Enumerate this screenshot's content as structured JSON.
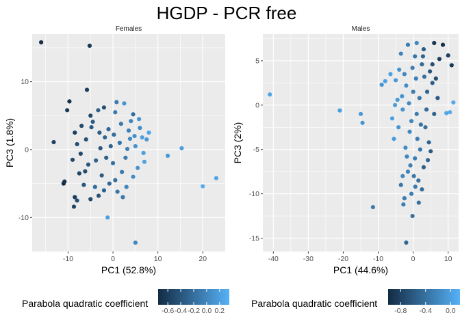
{
  "figure": {
    "title": "HGDP - PCR free"
  },
  "colors": {
    "panel_bg": "#ebebeb",
    "grid_major": "#ffffff",
    "low": "#132b43",
    "high": "#56b1f7"
  },
  "chart_data": [
    {
      "type": "scatter",
      "strip_label": "Females",
      "xlabel": "PC1 (52.8%)",
      "ylabel": "PC3 (1.8%)",
      "xlim": [
        -18,
        25
      ],
      "ylim": [
        -15,
        17
      ],
      "xticks": [
        -10,
        0,
        10,
        20
      ],
      "yticks": [
        -10,
        0,
        10
      ],
      "xtick_labels": [
        "-10",
        "0",
        "10",
        "20"
      ],
      "ytick_labels": [
        "-10",
        "0",
        "10"
      ],
      "grid": true,
      "color_variable": "Parabola quadratic coefficient",
      "color_range": [
        -0.75,
        0.35
      ],
      "legend": {
        "title": "Parabola quadratic coefficient",
        "position": "bottom",
        "ticks": [
          -0.6,
          -0.4,
          -0.2,
          0.0,
          0.2
        ],
        "tick_labels": [
          "-0.6",
          "-0.4",
          "-0.2",
          "0.0",
          "0.2"
        ]
      },
      "points": [
        [
          -16.0,
          15.8,
          -0.72
        ],
        [
          -5.2,
          15.3,
          -0.65
        ],
        [
          -5.8,
          8.8,
          -0.6
        ],
        [
          -9.7,
          7.1,
          -0.7
        ],
        [
          -10.2,
          5.8,
          -0.62
        ],
        [
          -13.2,
          1.1,
          -0.55
        ],
        [
          -11.0,
          -5.0,
          -0.72
        ],
        [
          -10.8,
          -4.7,
          -0.68
        ],
        [
          -8.5,
          -7.0,
          -0.6
        ],
        [
          -8.7,
          -8.4,
          -0.55
        ],
        [
          -8.0,
          -7.5,
          -0.45
        ],
        [
          -5.0,
          -7.3,
          -0.5
        ],
        [
          -1.2,
          -10.0,
          0.2
        ],
        [
          5.0,
          -13.7,
          0.0
        ],
        [
          12.2,
          -0.9,
          0.15
        ],
        [
          15.3,
          0.2,
          0.2
        ],
        [
          23.0,
          -4.2,
          0.25
        ],
        [
          20.0,
          -5.4,
          0.32
        ],
        [
          -3.3,
          5.8,
          -0.3
        ],
        [
          -2.0,
          6.2,
          -0.45
        ],
        [
          2.5,
          6.8,
          0.1
        ],
        [
          4.5,
          5.2,
          -0.2
        ],
        [
          -7.0,
          3.5,
          -0.5
        ],
        [
          -4.5,
          4.1,
          -0.35
        ],
        [
          0.5,
          5.5,
          -0.1
        ],
        [
          6.0,
          3.2,
          0.05
        ],
        [
          7.5,
          1.5,
          0.15
        ],
        [
          6.8,
          -0.5,
          0.2
        ],
        [
          5.5,
          -2.7,
          0.1
        ],
        [
          8.0,
          2.5,
          0.25
        ],
        [
          -9.0,
          -1.5,
          -0.5
        ],
        [
          -8.0,
          0.8,
          -0.45
        ],
        [
          -7.5,
          -3.5,
          -0.55
        ],
        [
          -6.5,
          -5.2,
          -0.4
        ],
        [
          -4.0,
          -5.5,
          -0.2
        ],
        [
          -2.0,
          -6.0,
          -0.3
        ],
        [
          1.0,
          -6.2,
          -0.15
        ],
        [
          3.0,
          -5.5,
          0.0
        ],
        [
          2.0,
          -3.3,
          -0.1
        ],
        [
          -3.0,
          2.5,
          -0.35
        ],
        [
          3.5,
          2.8,
          -0.05
        ],
        [
          0.0,
          -2.0,
          -0.2
        ],
        [
          -1.0,
          3.0,
          -0.25
        ],
        [
          4.0,
          4.2,
          0.0
        ],
        [
          -5.5,
          -2.2,
          -0.4
        ],
        [
          2.8,
          -1.2,
          -0.1
        ],
        [
          -3.8,
          -1.6,
          -0.3
        ],
        [
          1.5,
          1.0,
          -0.15
        ],
        [
          -0.5,
          0.5,
          -0.3
        ],
        [
          5.0,
          0.5,
          0.1
        ],
        [
          -6.0,
          1.5,
          -0.45
        ],
        [
          -2.5,
          -3.8,
          -0.35
        ],
        [
          0.5,
          -4.5,
          -0.2
        ],
        [
          6.5,
          1.8,
          0.2
        ],
        [
          -4.8,
          3.3,
          -0.38
        ],
        [
          3.2,
          0.1,
          -0.05
        ],
        [
          -1.8,
          1.8,
          -0.28
        ],
        [
          1.8,
          3.8,
          -0.12
        ],
        [
          -7.2,
          -0.6,
          -0.5
        ],
        [
          4.5,
          -4.0,
          0.05
        ],
        [
          -3.2,
          -6.8,
          -0.42
        ],
        [
          0.8,
          7.0,
          -0.08
        ],
        [
          5.8,
          4.5,
          0.12
        ],
        [
          -5.0,
          5.0,
          -0.5
        ],
        [
          2.2,
          -7.0,
          -0.1
        ],
        [
          -8.5,
          2.5,
          -0.6
        ],
        [
          7.0,
          -1.8,
          0.22
        ],
        [
          -1.5,
          -1.2,
          -0.32
        ],
        [
          0.2,
          2.2,
          -0.22
        ],
        [
          -2.8,
          0.2,
          -0.4
        ],
        [
          3.8,
          1.6,
          0.02
        ],
        [
          -0.8,
          -5.0,
          -0.25
        ],
        [
          -6.2,
          -3.2,
          -0.48
        ],
        [
          4.8,
          2.0,
          0.08
        ]
      ]
    },
    {
      "type": "scatter",
      "strip_label": "Males",
      "xlabel": "PC1 (44.6%)",
      "ylabel": "PC3 (2%)",
      "xlim": [
        -43,
        13
      ],
      "ylim": [
        -16.5,
        8
      ],
      "xticks": [
        -40,
        -30,
        -20,
        -10,
        0,
        10
      ],
      "yticks": [
        -15,
        -10,
        -5,
        0,
        5
      ],
      "xtick_labels": [
        "-40",
        "-30",
        "-20",
        "-10",
        "0",
        "10"
      ],
      "ytick_labels": [
        "-15",
        "-10",
        "-5",
        "0",
        "5"
      ],
      "grid": true,
      "color_variable": "Parabola quadratic coefficient",
      "color_range": [
        -1.0,
        0.15
      ],
      "legend": {
        "title": "Parabola quadratic coefficient",
        "position": "bottom",
        "ticks": [
          -0.8,
          -0.4,
          0.0
        ],
        "tick_labels": [
          "-0.8",
          "-0.4",
          "0.0"
        ]
      },
      "points": [
        [
          -41.0,
          1.2,
          0.05
        ],
        [
          -21.0,
          -0.6,
          0.0
        ],
        [
          -15.0,
          -1.0,
          -0.05
        ],
        [
          -14.5,
          -2.0,
          -0.1
        ],
        [
          -11.5,
          -11.5,
          -0.3
        ],
        [
          -2.0,
          -15.5,
          -0.5
        ],
        [
          -9.0,
          2.3,
          -0.1
        ],
        [
          -8.0,
          2.7,
          0.0
        ],
        [
          -6.5,
          3.5,
          0.02
        ],
        [
          10.5,
          -0.8,
          0.1
        ],
        [
          9.5,
          -0.9,
          0.05
        ],
        [
          11.5,
          0.3,
          0.08
        ],
        [
          6.0,
          7.0,
          -0.9
        ],
        [
          8.5,
          6.8,
          -0.95
        ],
        [
          7.5,
          5.2,
          -0.85
        ],
        [
          10.0,
          5.6,
          -0.8
        ],
        [
          11.0,
          4.5,
          -0.9
        ],
        [
          5.5,
          4.6,
          -0.7
        ],
        [
          3.0,
          6.3,
          -0.6
        ],
        [
          -1.5,
          6.8,
          -0.3
        ],
        [
          1.0,
          7.0,
          -0.2
        ],
        [
          -3.5,
          5.8,
          -0.25
        ],
        [
          -4.0,
          4.0,
          -0.1
        ],
        [
          -5.0,
          2.8,
          -0.05
        ],
        [
          0.5,
          5.5,
          -0.35
        ],
        [
          2.5,
          4.6,
          -0.45
        ],
        [
          -2.0,
          2.2,
          -0.15
        ],
        [
          4.0,
          1.5,
          -0.5
        ],
        [
          -3.0,
          -0.5,
          -0.1
        ],
        [
          1.0,
          -1.0,
          -0.3
        ],
        [
          3.5,
          -2.5,
          -0.4
        ],
        [
          -1.0,
          -3.0,
          -0.2
        ],
        [
          2.0,
          -5.0,
          -0.35
        ],
        [
          4.5,
          -4.2,
          -0.5
        ],
        [
          0.5,
          -6.0,
          -0.3
        ],
        [
          -1.5,
          -7.5,
          -0.25
        ],
        [
          1.5,
          -8.5,
          -0.4
        ],
        [
          -0.5,
          -10.0,
          -0.3
        ],
        [
          2.5,
          -9.5,
          -0.45
        ],
        [
          3.0,
          -7.0,
          -0.55
        ],
        [
          -3.5,
          -9.0,
          -0.35
        ],
        [
          -2.5,
          -10.5,
          -0.3
        ],
        [
          -3.0,
          -8.0,
          -0.2
        ],
        [
          5.0,
          -5.2,
          -0.6
        ],
        [
          -5.5,
          -3.8,
          -0.05
        ],
        [
          -6.0,
          -1.5,
          0.0
        ],
        [
          -4.5,
          0.6,
          -0.05
        ],
        [
          6.0,
          -1.0,
          -0.5
        ],
        [
          5.5,
          2.5,
          -0.55
        ],
        [
          7.0,
          0.8,
          -0.6
        ],
        [
          -2.5,
          3.5,
          -0.2
        ],
        [
          0.0,
          1.5,
          -0.3
        ],
        [
          3.2,
          3.2,
          -0.4
        ],
        [
          -1.2,
          0.2,
          -0.18
        ],
        [
          1.8,
          0.8,
          -0.35
        ],
        [
          -0.5,
          -1.8,
          -0.22
        ],
        [
          2.2,
          -2.2,
          -0.38
        ],
        [
          -2.2,
          -4.8,
          -0.18
        ],
        [
          4.2,
          -6.2,
          -0.5
        ],
        [
          -0.8,
          -6.8,
          -0.28
        ],
        [
          1.2,
          -3.8,
          -0.3
        ],
        [
          -4.2,
          -2.5,
          -0.08
        ],
        [
          3.8,
          -0.5,
          -0.45
        ],
        [
          0.8,
          3.0,
          -0.28
        ],
        [
          -3.2,
          1.0,
          -0.1
        ],
        [
          2.8,
          5.5,
          -0.5
        ],
        [
          -0.2,
          4.2,
          -0.3
        ],
        [
          -5.2,
          0.0,
          -0.02
        ],
        [
          4.8,
          3.8,
          -0.65
        ],
        [
          6.5,
          3.0,
          -0.7
        ],
        [
          0.2,
          -8.0,
          -0.35
        ],
        [
          -1.8,
          -5.8,
          -0.2
        ],
        [
          -2.8,
          -11.2,
          -0.3
        ],
        [
          1.6,
          -11.0,
          -0.4
        ],
        [
          -0.2,
          -12.5,
          -0.38
        ],
        [
          0.6,
          -9.2,
          -0.32
        ]
      ]
    }
  ]
}
